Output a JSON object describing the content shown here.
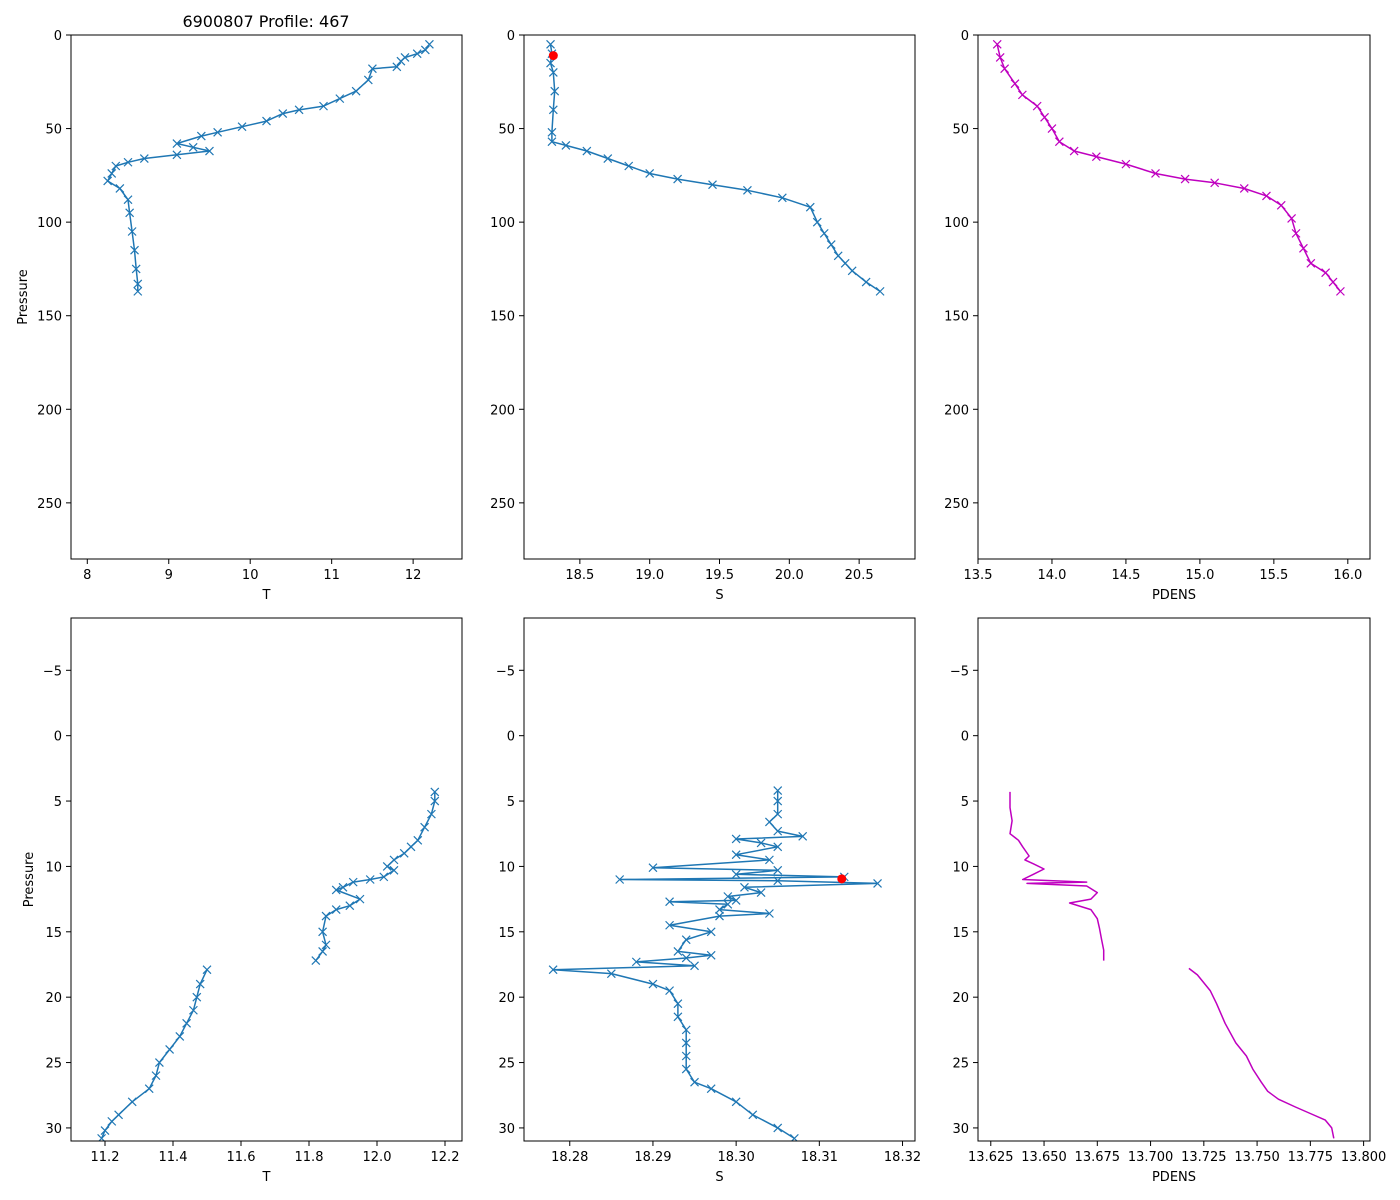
{
  "title": "6900807 Profile: 467",
  "colors": {
    "series": "#1f77b4",
    "density": "#bf00bf",
    "flag": "#ff0000"
  },
  "chart_data": [
    {
      "type": "line",
      "title": "6900807 Profile: 467",
      "xlabel": "T",
      "ylabel": "Pressure",
      "xlim": [
        7.8,
        12.6
      ],
      "ylim": [
        280,
        0
      ],
      "marker": "x",
      "xticks": [
        8,
        9,
        10,
        11,
        12
      ],
      "xticklabels": [
        "8",
        "9",
        "10",
        "11",
        "12"
      ],
      "yticks": [
        0,
        50,
        100,
        150,
        200,
        250
      ],
      "yticklabels": [
        "0",
        "50",
        "100",
        "150",
        "200",
        "250"
      ],
      "x": [
        12.2,
        12.15,
        12.05,
        11.9,
        11.85,
        11.8,
        11.5,
        11.45,
        11.3,
        11.1,
        10.9,
        10.6,
        10.4,
        10.2,
        9.9,
        9.6,
        9.4,
        9.1,
        9.3,
        9.5,
        9.1,
        8.7,
        8.5,
        8.35,
        8.3,
        8.25,
        8.4,
        8.5,
        8.52,
        8.55,
        8.58,
        8.6,
        8.62,
        8.62
      ],
      "y": [
        5,
        8,
        10,
        12,
        14,
        17,
        18,
        24,
        30,
        34,
        38,
        40,
        42,
        46,
        49,
        52,
        54,
        58,
        60,
        62,
        64,
        66,
        68,
        70,
        74,
        78,
        82,
        88,
        95,
        105,
        115,
        125,
        133,
        137
      ]
    },
    {
      "type": "line",
      "xlabel": "S",
      "ylabel": "",
      "xlim": [
        18.1,
        20.9
      ],
      "ylim": [
        280,
        0
      ],
      "marker": "x",
      "xticks": [
        18.5,
        19.0,
        19.5,
        20.0,
        20.5
      ],
      "xticklabels": [
        "18.5",
        "19.0",
        "19.5",
        "20.0",
        "20.5"
      ],
      "yticks": [
        0,
        50,
        100,
        150,
        200,
        250
      ],
      "yticklabels": [
        "0",
        "50",
        "100",
        "150",
        "200",
        "250"
      ],
      "x": [
        18.29,
        18.3,
        18.29,
        18.31,
        18.32,
        18.31,
        18.3,
        18.3,
        18.4,
        18.55,
        18.7,
        18.85,
        19.0,
        19.2,
        19.45,
        19.7,
        19.95,
        20.15,
        20.2,
        20.25,
        20.3,
        20.35,
        20.4,
        20.45,
        20.55,
        20.65
      ],
      "y": [
        5,
        10,
        15,
        20,
        30,
        40,
        52,
        57,
        59,
        62,
        66,
        70,
        74,
        77,
        80,
        83,
        87,
        92,
        100,
        106,
        112,
        118,
        122,
        126,
        132,
        137
      ],
      "flag": [
        {
          "x": 18.31,
          "y": 11
        }
      ]
    },
    {
      "type": "line",
      "xlabel": "PDENS",
      "ylabel": "",
      "xlim": [
        13.5,
        16.15
      ],
      "ylim": [
        280,
        0
      ],
      "marker": "x",
      "xticks": [
        13.5,
        14.0,
        14.5,
        15.0,
        15.5,
        16.0
      ],
      "xticklabels": [
        "13.5",
        "14.0",
        "14.5",
        "15.0",
        "15.5",
        "16.0"
      ],
      "yticks": [
        0,
        50,
        100,
        150,
        200,
        250
      ],
      "yticklabels": [
        "0",
        "50",
        "100",
        "150",
        "200",
        "250"
      ],
      "x": [
        13.63,
        13.65,
        13.68,
        13.75,
        13.8,
        13.9,
        13.95,
        14.0,
        14.05,
        14.15,
        14.3,
        14.5,
        14.7,
        14.9,
        15.1,
        15.3,
        15.45,
        15.55,
        15.62,
        15.65,
        15.7,
        15.75,
        15.85,
        15.9,
        15.95
      ],
      "y": [
        5,
        12,
        18,
        26,
        32,
        38,
        44,
        50,
        57,
        62,
        65,
        69,
        74,
        77,
        79,
        82,
        86,
        91,
        98,
        106,
        114,
        122,
        127,
        132,
        137
      ]
    },
    {
      "type": "line",
      "xlabel": "T",
      "ylabel": "Pressure",
      "xlim": [
        11.1,
        12.25
      ],
      "ylim": [
        31,
        -9
      ],
      "marker": "x",
      "xticks": [
        11.2,
        11.4,
        11.6,
        11.8,
        12.0,
        12.2
      ],
      "xticklabels": [
        "11.2",
        "11.4",
        "11.6",
        "11.8",
        "12.0",
        "12.2"
      ],
      "yticks": [
        -5,
        0,
        5,
        10,
        15,
        20,
        25,
        30
      ],
      "yticklabels": [
        "−5",
        "0",
        "5",
        "10",
        "15",
        "20",
        "25",
        "30"
      ],
      "x": [
        12.17,
        12.17,
        12.16,
        12.14,
        12.12,
        12.1,
        12.08,
        12.05,
        12.03,
        12.05,
        12.02,
        11.98,
        11.93,
        11.9,
        11.88,
        11.95,
        11.92,
        11.88,
        11.85,
        11.84,
        11.85,
        11.84,
        11.82
      ],
      "y": [
        4.3,
        5,
        6,
        7,
        8,
        8.5,
        9,
        9.5,
        10,
        10.3,
        10.8,
        11,
        11.2,
        11.6,
        11.8,
        12.5,
        13,
        13.3,
        13.8,
        15,
        16,
        16.5,
        17.2
      ],
      "x2": [
        11.5,
        11.48,
        11.47,
        11.46,
        11.44,
        11.42,
        11.39,
        11.36,
        11.35,
        11.33,
        11.28,
        11.24,
        11.22,
        11.2,
        11.19
      ],
      "y2": [
        17.9,
        19,
        20,
        21,
        22,
        23,
        24,
        25,
        26,
        27,
        28,
        29,
        29.5,
        30.2,
        30.8
      ]
    },
    {
      "type": "line",
      "xlabel": "S",
      "ylabel": "",
      "xlim": [
        18.2745,
        18.3215
      ],
      "ylim": [
        31,
        -9
      ],
      "marker": "x",
      "xticks": [
        18.28,
        18.29,
        18.3,
        18.31,
        18.32
      ],
      "xticklabels": [
        "18.28",
        "18.29",
        "18.30",
        "18.31",
        "18.32"
      ],
      "yticks": [
        -5,
        0,
        5,
        10,
        15,
        20,
        25,
        30
      ],
      "yticklabels": [
        "−5",
        "0",
        "5",
        "10",
        "15",
        "20",
        "25",
        "30"
      ],
      "x": [
        18.305,
        18.305,
        18.305,
        18.304,
        18.305,
        18.308,
        18.3,
        18.303,
        18.305,
        18.3,
        18.304,
        18.29,
        18.305,
        18.3,
        18.313,
        18.286,
        18.305,
        18.317,
        18.301,
        18.303,
        18.299,
        18.3,
        18.292,
        18.299,
        18.298,
        18.304,
        18.298,
        18.292,
        18.297,
        18.294,
        18.293,
        18.297,
        18.294,
        18.288,
        18.295,
        18.278,
        18.285,
        18.29,
        18.292,
        18.293,
        18.293,
        18.294,
        18.294,
        18.294,
        18.294,
        18.295,
        18.297,
        18.3,
        18.302,
        18.305,
        18.307
      ],
      "y": [
        4.2,
        5,
        6,
        6.6,
        7.3,
        7.7,
        7.9,
        8.2,
        8.5,
        9.1,
        9.5,
        10.1,
        10.3,
        10.6,
        10.8,
        11.0,
        11.1,
        11.3,
        11.6,
        12.0,
        12.3,
        12.6,
        12.7,
        12.9,
        13.3,
        13.6,
        13.8,
        14.5,
        15.0,
        15.6,
        16.5,
        16.8,
        17.0,
        17.3,
        17.6,
        17.9,
        18.2,
        19.0,
        19.5,
        20.5,
        21.5,
        22.5,
        23.5,
        24.5,
        25.5,
        26.5,
        27.0,
        28.0,
        29.0,
        30.0,
        30.8
      ],
      "flag": [
        {
          "x": 18.3127,
          "y": 10.95
        }
      ]
    },
    {
      "type": "line",
      "xlabel": "PDENS",
      "ylabel": "",
      "xlim": [
        13.619,
        13.803
      ],
      "ylim": [
        31,
        -9
      ],
      "marker": "none",
      "xticks": [
        13.625,
        13.65,
        13.675,
        13.7,
        13.725,
        13.75,
        13.775,
        13.8
      ],
      "xticklabels": [
        "13.625",
        "13.650",
        "13.675",
        "13.700",
        "13.725",
        "13.750",
        "13.775",
        "13.800"
      ],
      "yticks": [
        -5,
        0,
        5,
        10,
        15,
        20,
        25,
        30
      ],
      "yticklabels": [
        "−5",
        "0",
        "5",
        "10",
        "15",
        "20",
        "25",
        "30"
      ],
      "x": [
        13.634,
        13.634,
        13.635,
        13.634,
        13.638,
        13.64,
        13.643,
        13.641,
        13.645,
        13.65,
        13.645,
        13.64,
        13.67,
        13.642,
        13.67,
        13.675,
        13.672,
        13.662,
        13.672,
        13.675,
        13.676,
        13.677,
        13.678,
        13.678
      ],
      "y": [
        4.3,
        5.5,
        6.5,
        7.5,
        8.0,
        8.5,
        9.2,
        9.5,
        9.8,
        10.2,
        10.6,
        11.0,
        11.2,
        11.3,
        11.5,
        12.0,
        12.5,
        12.8,
        13.3,
        14.0,
        14.7,
        15.6,
        16.4,
        17.2
      ],
      "x2": [
        13.718,
        13.722,
        13.728,
        13.731,
        13.735,
        13.74,
        13.745,
        13.748,
        13.752,
        13.755,
        13.76,
        13.768,
        13.775,
        13.782,
        13.785,
        13.786
      ],
      "y2": [
        17.8,
        18.3,
        19.5,
        20.5,
        22.0,
        23.5,
        24.5,
        25.5,
        26.5,
        27.2,
        27.8,
        28.4,
        28.9,
        29.4,
        30.0,
        30.8
      ]
    }
  ]
}
